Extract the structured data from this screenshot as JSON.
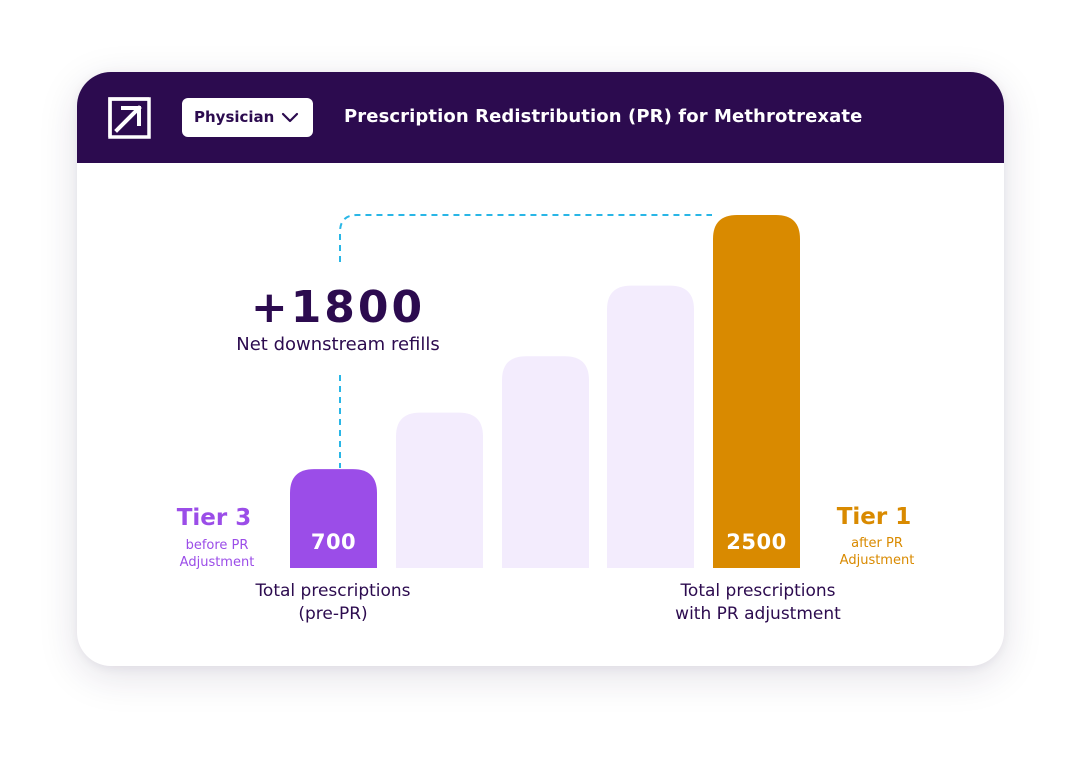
{
  "header": {
    "role_selector": "Physician",
    "title": "Prescription Redistribution (PR) for Methrotrexate"
  },
  "colors": {
    "header_bg": "#2c0b4f",
    "tier3": "#9b4de8",
    "tier1": "#d98a00",
    "intermediate_bar": "#f3ecfd",
    "connector": "#29b6e6",
    "text": "#2c0b4f"
  },
  "icons": {
    "logo": "arrow-out-box-icon",
    "dropdown": "chevron-down-icon"
  },
  "delta": {
    "value": "+1800",
    "caption": "Net downstream refills"
  },
  "tier_left": {
    "title": "Tier 3",
    "subtitle_line1": "before PR",
    "subtitle_line2": "Adjustment"
  },
  "tier_right": {
    "title": "Tier 1",
    "subtitle_line1": "after PR",
    "subtitle_line2": "Adjustment"
  },
  "captions": {
    "left_line1": "Total prescriptions",
    "left_line2": "(pre-PR)",
    "right_line1": "Total prescriptions",
    "right_line2": "with PR adjustment"
  },
  "chart_data": {
    "type": "bar",
    "values": [
      700,
      1100,
      1500,
      2000,
      2500
    ],
    "value_labels": [
      "700",
      "",
      "",
      "",
      "2500"
    ],
    "highlight": [
      "start",
      "intermediate",
      "intermediate",
      "intermediate",
      "end"
    ]
  }
}
